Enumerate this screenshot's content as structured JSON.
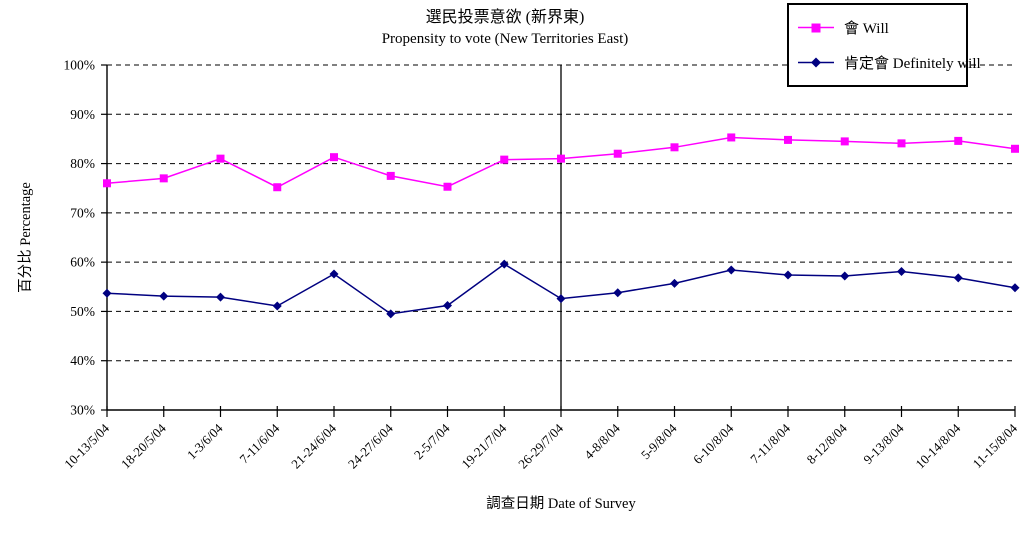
{
  "legend": {
    "items": [
      {
        "label": "會 Will",
        "color": "#FF00FF",
        "marker": "square"
      },
      {
        "label": "肯定會 Definitely will",
        "color": "#000080",
        "marker": "diamond"
      }
    ]
  },
  "chart_data": {
    "type": "line",
    "title": "選民投票意欲 (新界東)",
    "subtitle": "Propensity to vote (New Territories East)",
    "xlabel": "調查日期 Date of Survey",
    "ylabel": "百分比 Percentage",
    "ylim": [
      30,
      100
    ],
    "ytick_step": 10,
    "ytick_labels": [
      "100%",
      "90%",
      "80%",
      "70%",
      "60%",
      "50%",
      "40%",
      "30%"
    ],
    "grid": "horizontal-dashed",
    "legend_position": "top-right",
    "vertical_line_at_category": "26-29/7/04",
    "categories": [
      "10-13/5/04",
      "18-20/5/04",
      "1-3/6/04",
      "7-11/6/04",
      "21-24/6/04",
      "24-27/6/04",
      "2-5/7/04",
      "19-21/7/04",
      "26-29/7/04",
      "4-8/8/04",
      "5-9/8/04",
      "6-10/8/04",
      "7-11/8/04",
      "8-12/8/04",
      "9-13/8/04",
      "10-14/8/04",
      "11-15/8/04"
    ],
    "series": [
      {
        "name": "會 Will",
        "color": "#FF00FF",
        "marker": "square",
        "values": [
          76.0,
          77.0,
          81.0,
          75.2,
          81.3,
          77.5,
          75.3,
          80.8,
          81.0,
          82.0,
          83.3,
          85.3,
          84.8,
          84.5,
          84.1,
          84.6,
          83.0
        ]
      },
      {
        "name": "肯定會 Definitely will",
        "color": "#000080",
        "marker": "diamond",
        "values": [
          53.7,
          53.1,
          52.9,
          51.1,
          57.6,
          49.5,
          51.2,
          59.6,
          52.6,
          53.8,
          55.7,
          58.4,
          57.4,
          57.2,
          58.1,
          56.8,
          54.8
        ]
      }
    ]
  }
}
